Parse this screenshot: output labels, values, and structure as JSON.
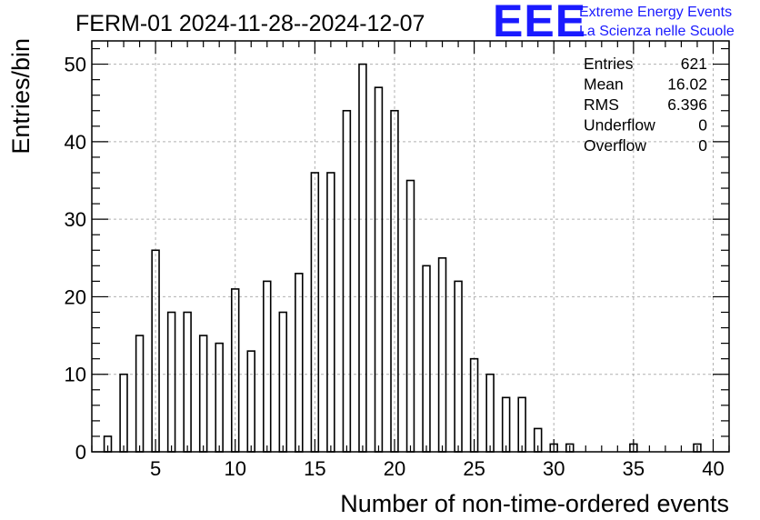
{
  "chart_data": {
    "type": "bar",
    "title": "FERM-01 2024-11-28--2024-12-07",
    "xlabel": "Number of non-time-ordered events",
    "ylabel": "Entries/bin",
    "xlim": [
      1,
      41
    ],
    "ylim": [
      0,
      53
    ],
    "grid": true,
    "x_ticks": [
      5,
      10,
      15,
      20,
      25,
      30,
      35,
      40
    ],
    "y_ticks": [
      0,
      10,
      20,
      30,
      40,
      50
    ],
    "x": [
      2,
      3,
      4,
      5,
      6,
      7,
      8,
      9,
      10,
      11,
      12,
      13,
      14,
      15,
      16,
      17,
      18,
      19,
      20,
      21,
      22,
      23,
      24,
      25,
      26,
      27,
      28,
      29,
      30,
      31,
      35,
      39
    ],
    "values": [
      2,
      10,
      15,
      26,
      18,
      18,
      15,
      14,
      21,
      13,
      22,
      18,
      23,
      36,
      36,
      44,
      50,
      47,
      44,
      35,
      24,
      25,
      22,
      12,
      10,
      7,
      7,
      3,
      1,
      1,
      1,
      1
    ],
    "stats": [
      {
        "label": "Entries",
        "value": "621"
      },
      {
        "label": "Mean",
        "value": "16.02"
      },
      {
        "label": "RMS",
        "value": "6.396"
      },
      {
        "label": "Underflow",
        "value": "0"
      },
      {
        "label": "Overflow",
        "value": "0"
      }
    ]
  },
  "logo": {
    "big": "EEE",
    "line1": "Extreme Energy Events",
    "line2": "La Scienza nelle Scuole",
    "color": "#1a1aff"
  }
}
